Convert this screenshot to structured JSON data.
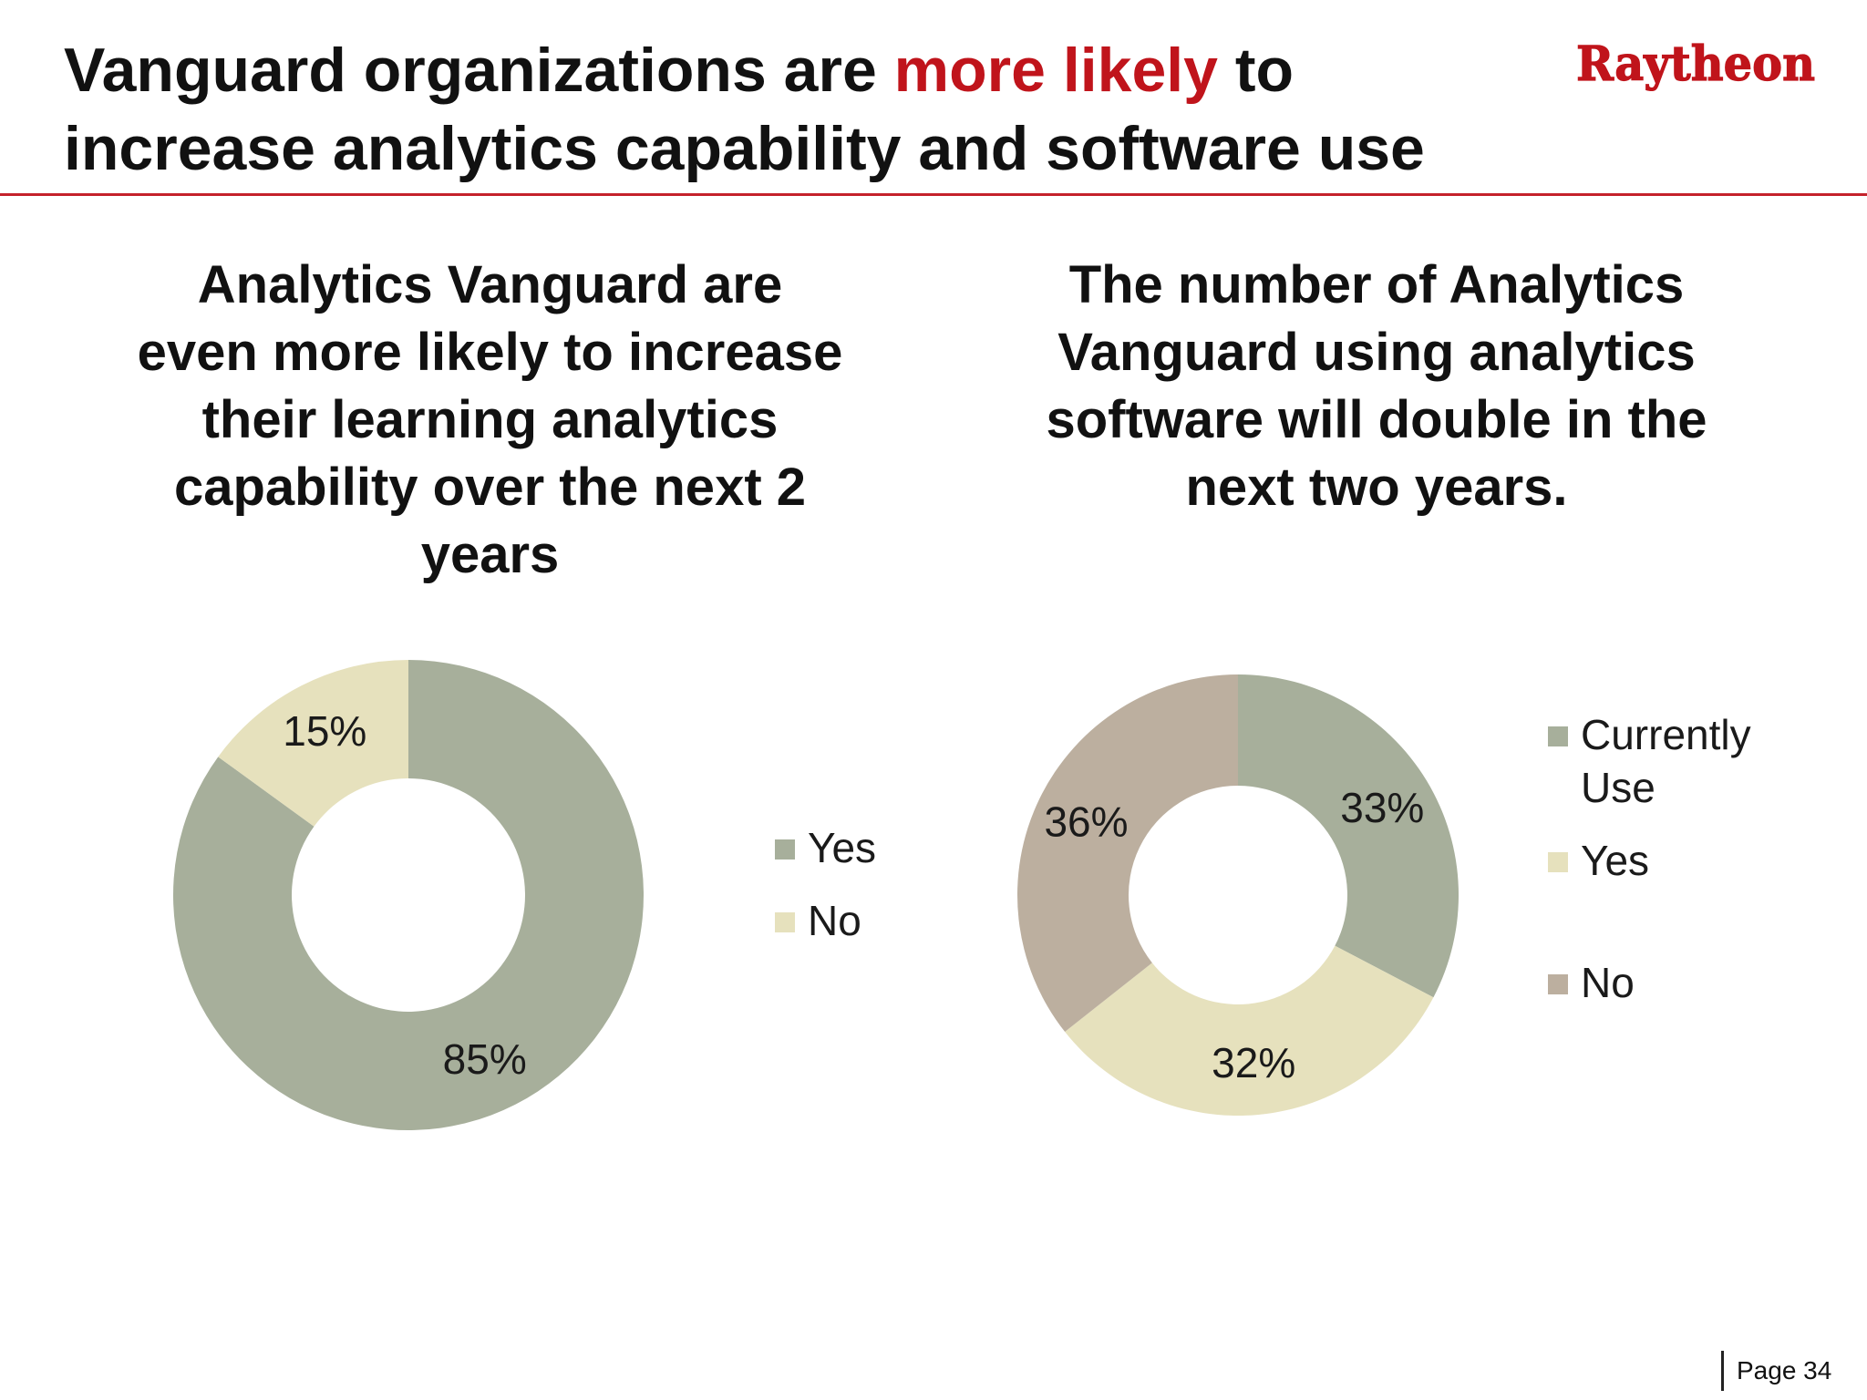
{
  "slide": {
    "title_before": "Vanguard organizations are ",
    "title_accent": "more likely",
    "title_after": " to increase analytics capability and software use",
    "logo_text": "Raytheon",
    "page_label": "Page 34"
  },
  "colors": {
    "accent": "#c0141b",
    "rule": "#c5222b",
    "slice_green": "#a7af9b",
    "slice_cream": "#e6e1bd",
    "slice_taupe": "#bcaf9f"
  },
  "chart_data": [
    {
      "type": "donut",
      "title": "Analytics Vanguard are even more likely to increase their learning analytics capability over the next 2 years",
      "categories": [
        "Yes",
        "No"
      ],
      "values": [
        85,
        15
      ],
      "labels": [
        "85%",
        "15%"
      ],
      "colors": [
        "#a7af9b",
        "#e6e1bd"
      ],
      "legend": [
        "Yes",
        "No"
      ],
      "legend_position": "right"
    },
    {
      "type": "donut",
      "title": "The number of Analytics Vanguard using analytics software will double in the next two years.",
      "categories": [
        "Currently Use",
        "Yes",
        "No"
      ],
      "values": [
        33,
        32,
        36
      ],
      "labels": [
        "33%",
        "32%",
        "36%"
      ],
      "colors": [
        "#a7af9b",
        "#e6e1bd",
        "#bcaf9f"
      ],
      "legend": [
        [
          "Currently",
          "Use"
        ],
        [
          "Yes"
        ],
        [
          "No"
        ]
      ],
      "legend_position": "right"
    }
  ]
}
